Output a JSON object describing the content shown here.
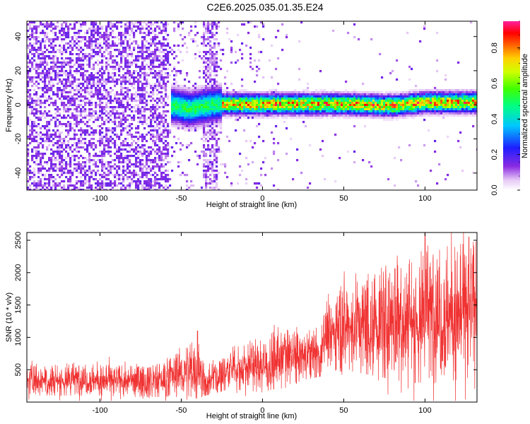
{
  "title": "C2E6.2025.035.01.35.E24",
  "colors": {
    "snr_line": "#f03232",
    "waterfall_bg": "#ffffff"
  },
  "chart_data": [
    {
      "type": "heatmap",
      "xlabel": "Height of straight line (km)",
      "ylabel": "Frequency (Hz)",
      "xlim": [
        -145,
        132
      ],
      "ylim": [
        -50,
        49
      ],
      "x_ticks": [
        -100,
        -50,
        0,
        50,
        100
      ],
      "y_ticks": [
        -40,
        -20,
        0,
        20,
        40
      ],
      "colorbar": {
        "label": "Normalized spectral amplitude",
        "range": [
          0.0,
          0.95
        ],
        "ticks": [
          "0.0",
          "0.2",
          "0.4",
          "0.6",
          "0.8"
        ],
        "colormap": "rainbow (violet-blue-cyan-green-yellow-orange-red-magenta)"
      },
      "features": {
        "noise_region_x": [
          -145,
          -25
        ],
        "gap_region_x": [
          -55,
          -22
        ],
        "signal_band_x": [
          -57,
          132
        ],
        "signal_center_freq": [
          {
            "x": -55,
            "f": 0
          },
          {
            "x": -45,
            "f": -2
          },
          {
            "x": -30,
            "f": 1
          },
          {
            "x": 0,
            "f": 1
          },
          {
            "x": 50,
            "f": 1
          },
          {
            "x": 80,
            "f": 0
          },
          {
            "x": 100,
            "f": 2
          },
          {
            "x": 132,
            "f": 2
          }
        ],
        "peak_band_x": [
          -25,
          130
        ]
      }
    },
    {
      "type": "line",
      "xlabel": "Height of straight line (km)",
      "ylabel": "SNR (10 * v/v)",
      "xlim": [
        -145,
        132
      ],
      "ylim": [
        0,
        2620
      ],
      "x_ticks": [
        -100,
        -50,
        0,
        50,
        100
      ],
      "y_ticks": [
        500,
        1000,
        1500,
        2000,
        2500
      ],
      "series": [
        {
          "envelope": [
            {
              "x": -145,
              "low": 100,
              "high": 600
            },
            {
              "x": -120,
              "low": 100,
              "high": 600
            },
            {
              "x": -100,
              "low": 100,
              "high": 580
            },
            {
              "x": -80,
              "low": 80,
              "high": 560
            },
            {
              "x": -60,
              "low": 80,
              "high": 620
            },
            {
              "x": -45,
              "low": 90,
              "high": 900
            },
            {
              "x": -40,
              "low": 50,
              "high": 1100
            },
            {
              "x": -35,
              "low": 100,
              "high": 500
            },
            {
              "x": -20,
              "low": 200,
              "high": 820
            },
            {
              "x": 0,
              "low": 150,
              "high": 1000
            },
            {
              "x": 20,
              "low": 300,
              "high": 1100
            },
            {
              "x": 36,
              "low": 400,
              "high": 1050
            },
            {
              "x": 37,
              "low": 600,
              "high": 1400
            },
            {
              "x": 50,
              "low": 500,
              "high": 1800
            },
            {
              "x": 70,
              "low": 400,
              "high": 2000
            },
            {
              "x": 90,
              "low": 300,
              "high": 2300
            },
            {
              "x": 110,
              "low": 300,
              "high": 2400
            },
            {
              "x": 132,
              "low": 400,
              "high": 2500
            }
          ],
          "peaks": [
            {
              "x": -40,
              "y": 1100
            },
            {
              "x": 100,
              "y": 2610
            },
            {
              "x": 127,
              "y": 2550
            }
          ]
        }
      ]
    }
  ]
}
